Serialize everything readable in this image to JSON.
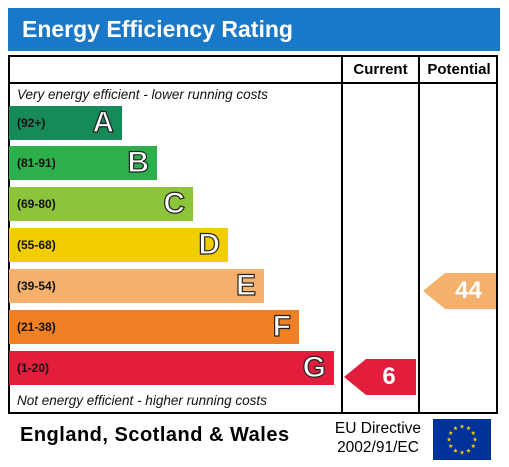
{
  "title": "Energy Efficiency Rating",
  "columns": {
    "current": "Current",
    "potential": "Potential"
  },
  "top_note": "Very energy efficient - lower running costs",
  "bottom_note": "Not energy efficient - higher running costs",
  "bands": [
    {
      "range": "(92+)",
      "letter": "A",
      "color": "#178a5a"
    },
    {
      "range": "(81-91)",
      "letter": "B",
      "color": "#2db04b"
    },
    {
      "range": "(69-80)",
      "letter": "C",
      "color": "#8dc43c"
    },
    {
      "range": "(55-68)",
      "letter": "D",
      "color": "#f1cd00"
    },
    {
      "range": "(39-54)",
      "letter": "E",
      "color": "#f5b16c"
    },
    {
      "range": "(21-38)",
      "letter": "F",
      "color": "#ef8124"
    },
    {
      "range": "(1-20)",
      "letter": "G",
      "color": "#e31d3c"
    }
  ],
  "current_rating": {
    "value": "6",
    "band": "G",
    "color": "#e31d3c"
  },
  "potential_rating": {
    "value": "44",
    "band": "E",
    "color": "#f5b16c"
  },
  "footer": {
    "region": "England, Scotland & Wales",
    "directive_line1": "EU Directive",
    "directive_line2": "2002/91/EC"
  },
  "eu_flag": {
    "icon": "eu-flag-icon",
    "background": "#003399",
    "stars": "#ffcc00"
  }
}
